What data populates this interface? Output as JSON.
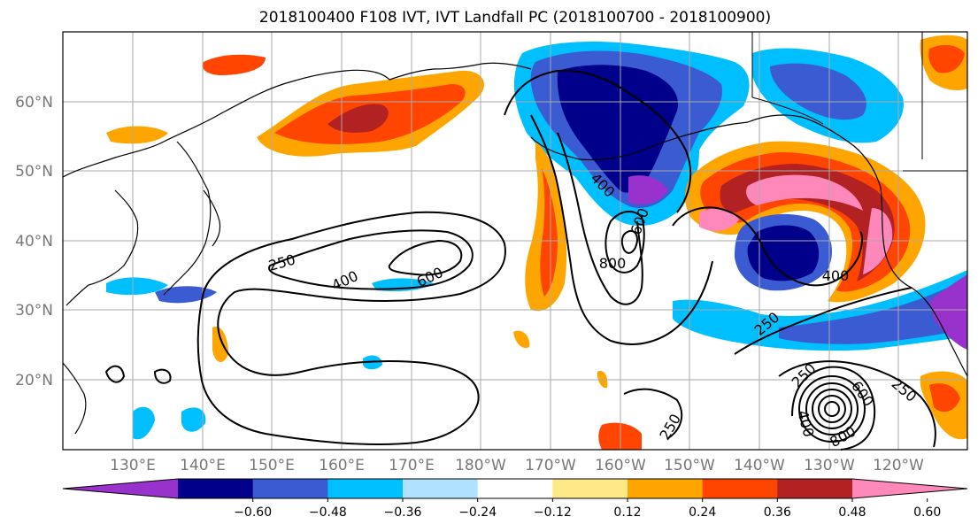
{
  "title": "2018100400 F108 IVT, IVT Landfall PC (2018100700 - 2018100900)",
  "map": {
    "lat_labels": [
      "60°N",
      "50°N",
      "40°N",
      "30°N",
      "20°N"
    ],
    "lon_labels": [
      "130°E",
      "140°E",
      "150°E",
      "160°E",
      "170°E",
      "180°W",
      "170°W",
      "160°W",
      "150°W",
      "140°W",
      "130°W",
      "120°W"
    ],
    "contour_labels": [
      "250",
      "400",
      "600",
      "400",
      "600",
      "800",
      "400",
      "250",
      "250",
      "600",
      "250",
      "400",
      "800",
      "250"
    ]
  },
  "colorbar": {
    "ticks": [
      "−0.60",
      "−0.48",
      "−0.36",
      "−0.24",
      "−0.12",
      "0.12",
      "0.24",
      "0.36",
      "0.48",
      "0.60"
    ],
    "colors": [
      "#9932cc",
      "#00008b",
      "#3a5bd1",
      "#00bfff",
      "#b0e2ff",
      "#ffffff",
      "#ffe987",
      "#ffa500",
      "#ff4500",
      "#b22222",
      "#ff88bb"
    ]
  }
}
